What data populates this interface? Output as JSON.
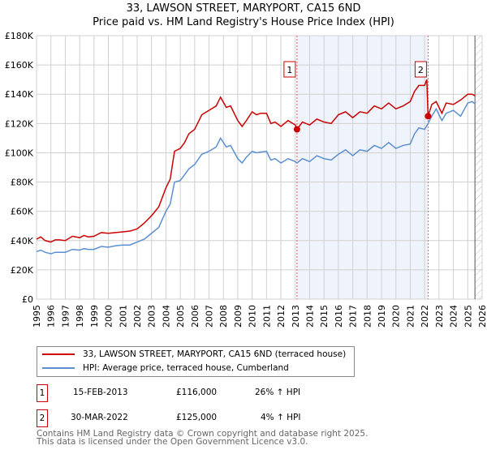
{
  "chart_data": {
    "type": "line",
    "title": "33, LAWSON STREET, MARYPORT, CA15 6ND",
    "subtitle": "Price paid vs. HM Land Registry's House Price Index (HPI)",
    "xlim": [
      1995,
      2026
    ],
    "ylim": [
      0,
      180000
    ],
    "x_ticks": [
      "1995",
      "1996",
      "1997",
      "1998",
      "1999",
      "2000",
      "2001",
      "2002",
      "2003",
      "2004",
      "2005",
      "2006",
      "2007",
      "2008",
      "2009",
      "2010",
      "2011",
      "2012",
      "2013",
      "2014",
      "2015",
      "2016",
      "2017",
      "2018",
      "2019",
      "2020",
      "2021",
      "2022",
      "2023",
      "2024",
      "2025",
      "2026"
    ],
    "y_ticks": [
      {
        "v": 0,
        "label": "£0"
      },
      {
        "v": 20000,
        "label": "£20K"
      },
      {
        "v": 40000,
        "label": "£40K"
      },
      {
        "v": 60000,
        "label": "£60K"
      },
      {
        "v": 80000,
        "label": "£80K"
      },
      {
        "v": 100000,
        "label": "£100K"
      },
      {
        "v": 120000,
        "label": "£120K"
      },
      {
        "v": 140000,
        "label": "£140K"
      },
      {
        "v": 160000,
        "label": "£160K"
      },
      {
        "v": 180000,
        "label": "£180K"
      }
    ],
    "grid": true,
    "shaded_range": [
      2013.12,
      2022.24
    ],
    "hatched_from": 2025.5,
    "series": [
      {
        "name": "33, LAWSON STREET, MARYPORT, CA15 6ND (terraced house)",
        "color": "#cc0000",
        "x": [
          1995,
          1995.3,
          1995.6,
          1996,
          1996.3,
          1996.6,
          1997,
          1997.5,
          1998,
          1998.3,
          1998.6,
          1999,
          1999.5,
          2000,
          2000.5,
          2001,
          2001.5,
          2002,
          2002.5,
          2003,
          2003.5,
          2004,
          2004.3,
          2004.6,
          2005,
          2005.3,
          2005.6,
          2006,
          2006.5,
          2007,
          2007.5,
          2007.8,
          2008.2,
          2008.5,
          2009,
          2009.3,
          2009.6,
          2010,
          2010.3,
          2010.6,
          2011,
          2011.3,
          2011.6,
          2012,
          2012.5,
          2013,
          2013.12,
          2013.5,
          2014,
          2014.5,
          2015,
          2015.5,
          2016,
          2016.5,
          2017,
          2017.5,
          2018,
          2018.5,
          2019,
          2019.5,
          2020,
          2020.5,
          2021,
          2021.3,
          2021.6,
          2022,
          2022.15,
          2022.24,
          2022.5,
          2022.8,
          2023.2,
          2023.5,
          2024,
          2024.5,
          2025,
          2025.3,
          2025.5
        ],
        "y": [
          41000,
          42500,
          40000,
          39000,
          40500,
          40500,
          40000,
          43000,
          42000,
          43500,
          42500,
          43000,
          45500,
          45000,
          45500,
          46000,
          46500,
          48000,
          52000,
          57000,
          63000,
          76000,
          82000,
          101000,
          103000,
          107000,
          113000,
          116000,
          126000,
          129000,
          132000,
          138000,
          131000,
          132000,
          122000,
          118000,
          122000,
          128000,
          126000,
          127000,
          127000,
          120000,
          121000,
          118000,
          122000,
          119000,
          116000,
          121000,
          119000,
          123000,
          121000,
          120000,
          126000,
          128000,
          124000,
          128000,
          127000,
          132000,
          130000,
          134000,
          130000,
          132000,
          135000,
          142000,
          146000,
          146000,
          150000,
          125000,
          133000,
          135000,
          127000,
          134000,
          133000,
          136000,
          140000,
          140000,
          139000
        ]
      },
      {
        "name": "HPI: Average price, terraced house, Cumberland",
        "color": "#5b8fd0",
        "x": [
          1995,
          1995.3,
          1995.6,
          1996,
          1996.3,
          1996.6,
          1997,
          1997.5,
          1998,
          1998.3,
          1998.6,
          1999,
          1999.5,
          2000,
          2000.5,
          2001,
          2001.5,
          2002,
          2002.5,
          2003,
          2003.5,
          2004,
          2004.3,
          2004.6,
          2005,
          2005.3,
          2005.6,
          2006,
          2006.5,
          2007,
          2007.5,
          2007.8,
          2008.2,
          2008.5,
          2009,
          2009.3,
          2009.6,
          2010,
          2010.3,
          2010.6,
          2011,
          2011.3,
          2011.6,
          2012,
          2012.5,
          2013,
          2013.12,
          2013.5,
          2014,
          2014.5,
          2015,
          2015.5,
          2016,
          2016.5,
          2017,
          2017.5,
          2018,
          2018.5,
          2019,
          2019.5,
          2020,
          2020.5,
          2021,
          2021.3,
          2021.6,
          2022,
          2022.24,
          2022.5,
          2022.8,
          2023.2,
          2023.5,
          2024,
          2024.5,
          2025,
          2025.3,
          2025.5
        ],
        "y": [
          32500,
          33500,
          32000,
          31000,
          32000,
          32000,
          32000,
          34000,
          33500,
          34500,
          34000,
          34000,
          36000,
          35500,
          36500,
          37000,
          37000,
          39000,
          41000,
          45000,
          49000,
          60000,
          65000,
          80000,
          81000,
          85000,
          89000,
          92000,
          99000,
          101000,
          104000,
          110000,
          104000,
          105000,
          96000,
          93000,
          97000,
          101000,
          100000,
          100500,
          101000,
          95000,
          96000,
          93000,
          96000,
          94000,
          93000,
          96000,
          94000,
          98000,
          96000,
          95000,
          99000,
          102000,
          98000,
          102000,
          101000,
          105000,
          103000,
          107000,
          103000,
          105000,
          106000,
          113000,
          117000,
          116000,
          120000,
          125000,
          130000,
          122000,
          127000,
          129000,
          125000,
          134000,
          135000,
          133500
        ]
      }
    ],
    "sales": [
      {
        "label": "1",
        "x": 2013.12,
        "y": 116000
      },
      {
        "label": "2",
        "x": 2022.24,
        "y": 125000
      }
    ]
  },
  "header": {
    "title": "33, LAWSON STREET, MARYPORT, CA15 6ND",
    "subtitle": "Price paid vs. HM Land Registry's House Price Index (HPI)"
  },
  "legend": {
    "items": [
      {
        "label": "33, LAWSON STREET, MARYPORT, CA15 6ND (terraced house)",
        "color": "#cc0000"
      },
      {
        "label": "HPI: Average price, terraced house, Cumberland",
        "color": "#5b8fd0"
      }
    ]
  },
  "transactions": [
    {
      "num": "1",
      "date": "15-FEB-2013",
      "price": "£116,000",
      "hpi": "26% ↑ HPI"
    },
    {
      "num": "2",
      "date": "30-MAR-2022",
      "price": "£125,000",
      "hpi": "4% ↑ HPI"
    }
  ],
  "footer": {
    "line1": "Contains HM Land Registry data © Crown copyright and database right 2025.",
    "line2": "This data is licensed under the Open Government Licence v3.0."
  }
}
